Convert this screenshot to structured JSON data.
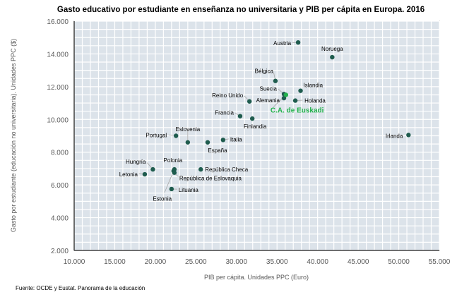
{
  "chart_data": {
    "type": "scatter",
    "title": "Gasto educativo por estudiante en enseñanza no universitaria y PIB per cápita en Europa. 2016",
    "xlabel": "PIB per cápita. Unidades PPC (Euro)",
    "ylabel": "Gasto por estudiante (educación no universitaria). Unidades PPC ($)",
    "xlim": [
      10000,
      55000
    ],
    "ylim": [
      2000,
      16000
    ],
    "xticks": [
      "10.000",
      "15.000",
      "20.000",
      "25.000",
      "30.000",
      "35.000",
      "40.000",
      "45.000",
      "50.000",
      "55.000"
    ],
    "yticks": [
      "2.000",
      "4.000",
      "6.000",
      "8.000",
      "10.000",
      "12.000",
      "14.000",
      "16.000"
    ],
    "grid": true,
    "colors": {
      "point": "#1f5c4e",
      "highlight": "#21b04b",
      "plot_bg": "#dce3ea",
      "grid": "#ffffff"
    },
    "points": [
      {
        "label": "Austria",
        "x": 37600,
        "y": 14700
      },
      {
        "label": "Noruega",
        "x": 41800,
        "y": 13800
      },
      {
        "label": "Bélgica",
        "x": 34800,
        "y": 12350
      },
      {
        "label": "Islandia",
        "x": 37900,
        "y": 11750
      },
      {
        "label": "Suecia",
        "x": 35850,
        "y": 11550
      },
      {
        "label": "Alemania",
        "x": 35850,
        "y": 11300
      },
      {
        "label": "Holanda",
        "x": 37250,
        "y": 11150
      },
      {
        "label": "Reino Unido",
        "x": 31600,
        "y": 11100
      },
      {
        "label": "Francia",
        "x": 30450,
        "y": 10200
      },
      {
        "label": "Finlandia",
        "x": 31950,
        "y": 10050
      },
      {
        "label": "Portugal",
        "x": 22550,
        "y": 9000
      },
      {
        "label": "Eslovenia",
        "x": 24000,
        "y": 8600
      },
      {
        "label": "España",
        "x": 26450,
        "y": 8600
      },
      {
        "label": "Italia",
        "x": 28350,
        "y": 8750
      },
      {
        "label": "Irlanda",
        "x": 51200,
        "y": 9050
      },
      {
        "label": "Hungría",
        "x": 19700,
        "y": 6950
      },
      {
        "label": "Polonia",
        "x": 22350,
        "y": 6950
      },
      {
        "label": "República Checa",
        "x": 25600,
        "y": 6950
      },
      {
        "label": "Letonia",
        "x": 18700,
        "y": 6650
      },
      {
        "label": "República de Eslovaquia",
        "x": 22350,
        "y": 6750
      },
      {
        "label": "Estonia",
        "x": 22250,
        "y": 6850
      },
      {
        "label": "Lituania",
        "x": 22000,
        "y": 5750
      },
      {
        "label": "C.A. de Euskadi",
        "x": 36100,
        "y": 11500,
        "highlight": true
      }
    ]
  },
  "source": "Fuente: OCDE y Eustat. Panorama de la educación"
}
